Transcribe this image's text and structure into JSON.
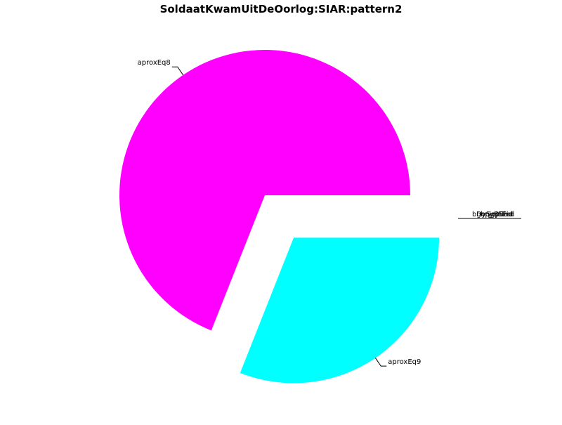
{
  "chart_data": {
    "type": "pie",
    "title": "SoldaatKwamUitDeOorlog:SIAR:pattern2",
    "slices": [
      {
        "label": "aproxEq8",
        "value": 69,
        "color": "#ff00ff",
        "exploded": false
      },
      {
        "label": "aproxEq9",
        "value": 31,
        "color": "#00ffff",
        "exploded": true
      }
    ],
    "overlapping_labels_note": "additional tiny-slice labels overlap near the right edge and are illegible",
    "start_angle_deg": 0,
    "direction": "counterclockwise",
    "legend": "none"
  }
}
